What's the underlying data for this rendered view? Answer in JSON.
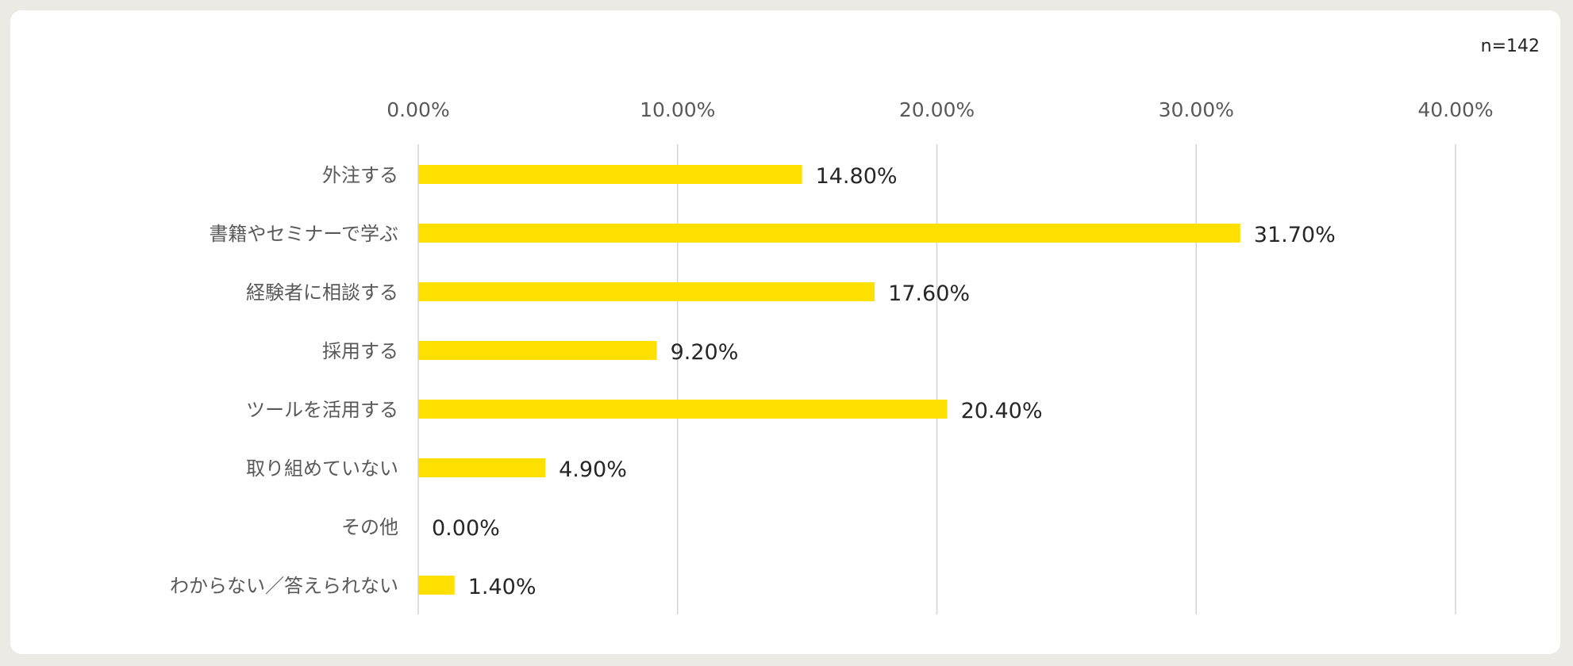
{
  "sample_size_label": "n=142",
  "colors": {
    "bar": "#ffe000",
    "grid": "#d4d4d4",
    "tick_text": "#595959",
    "category_text": "#595959",
    "value_text": "#262626",
    "page_background": "#ebeae4",
    "card_background": "#ffffff"
  },
  "chart_data": {
    "type": "bar",
    "orientation": "horizontal",
    "title": "",
    "xlabel": "",
    "ylabel": "",
    "xlim": [
      0,
      40
    ],
    "x_tick_values": [
      0,
      10,
      20,
      30,
      40
    ],
    "x_tick_labels": [
      "0.00%",
      "10.00%",
      "20.00%",
      "30.00%",
      "40.00%"
    ],
    "x_axis_position": "top",
    "grid": true,
    "legend": "none",
    "categories": [
      "外注する",
      "書籍やセミナーで学ぶ",
      "経験者に相談する",
      "採用する",
      "ツールを活用する",
      "取り組めていない",
      "その他",
      "わからない／答えられない"
    ],
    "values": [
      14.8,
      31.7,
      17.6,
      9.2,
      20.4,
      4.9,
      0.0,
      1.4
    ],
    "value_labels": [
      "14.80%",
      "31.70%",
      "17.60%",
      "9.20%",
      "20.40%",
      "4.90%",
      "0.00%",
      "1.40%"
    ]
  }
}
